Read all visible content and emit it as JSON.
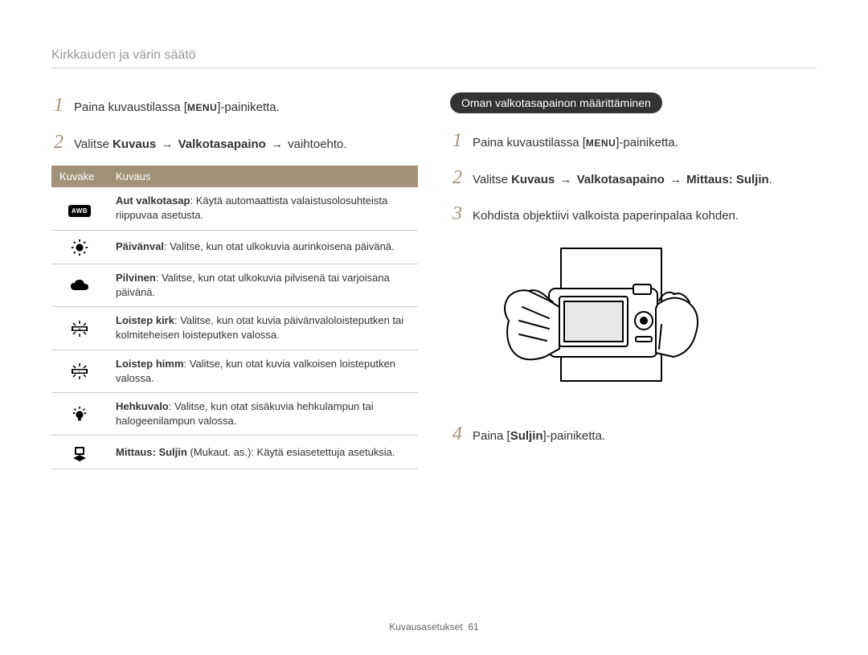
{
  "header": {
    "title": "Kirkkauden ja värin säätö"
  },
  "left": {
    "step1": {
      "prefix": "Paina kuvaustilassa [",
      "menu": "MENU",
      "suffix": "]-painiketta."
    },
    "step2": {
      "prefix": "Valitse ",
      "b1": "Kuvaus",
      "arrow1": "→",
      "b2": "Valkotasapaino",
      "arrow2": "→",
      "suffix": " vaihtoehto."
    },
    "table": {
      "h1": "Kuvake",
      "h2": "Kuvaus",
      "rows": [
        {
          "icon_name": "awb-icon",
          "label": "Aut valkotasap",
          "text": ": Käytä automaattista valaistusolosuhteista riippuvaa asetusta."
        },
        {
          "icon_name": "sun-icon",
          "label": "Päivänval",
          "text": ": Valitse, kun otat ulkokuvia aurinkoisena päivänä."
        },
        {
          "icon_name": "cloud-icon",
          "label": "Pilvinen",
          "text": ": Valitse, kun otat ulkokuvia pilvisenä tai varjoisana päivänä."
        },
        {
          "icon_name": "fluoro-h-icon",
          "label": "Loistep kirk",
          "text": ": Valitse, kun otat kuvia päivänvaloloisteputken tai kolmiteheisen loisteputken valossa."
        },
        {
          "icon_name": "fluoro-l-icon",
          "label": "Loistep himm",
          "text": ": Valitse, kun otat kuvia valkoisen loisteputken valossa."
        },
        {
          "icon_name": "bulb-icon",
          "label": "Hehkuvalo",
          "text": ": Valitse, kun otat sisäkuvia hehkulampun tai halogeenilampun valossa."
        },
        {
          "icon_name": "custom-icon",
          "label": "Mittaus: Suljin",
          "text": " (Mukaut. as.): Käytä esiasetettuja asetuksia."
        }
      ]
    }
  },
  "right": {
    "pill": "Oman valkotasapainon määrittäminen",
    "step1": {
      "prefix": "Paina kuvaustilassa [",
      "menu": "MENU",
      "suffix": "]-painiketta."
    },
    "step2": {
      "prefix": "Valitse ",
      "b1": "Kuvaus",
      "arrow1": "→",
      "b2": "Valkotasapaino",
      "arrow2": "→",
      "b3": "Mittaus: Suljin",
      "suffix": "."
    },
    "step3": {
      "text": "Kohdista objektiivi valkoista paperinpalaa kohden."
    },
    "step4": {
      "prefix": "Paina [",
      "b1": "Suljin",
      "suffix": "]-painiketta."
    }
  },
  "step_numbers": {
    "n1": "1",
    "n2": "2",
    "n3": "3",
    "n4": "4"
  },
  "footer": {
    "section": "Kuvausasetukset",
    "page": "61"
  },
  "icons": {
    "awb_text": "AWB"
  },
  "colors": {
    "accent": "#a29279",
    "pill_bg": "#333333",
    "header_text": "#999999",
    "border": "#cccccc"
  }
}
